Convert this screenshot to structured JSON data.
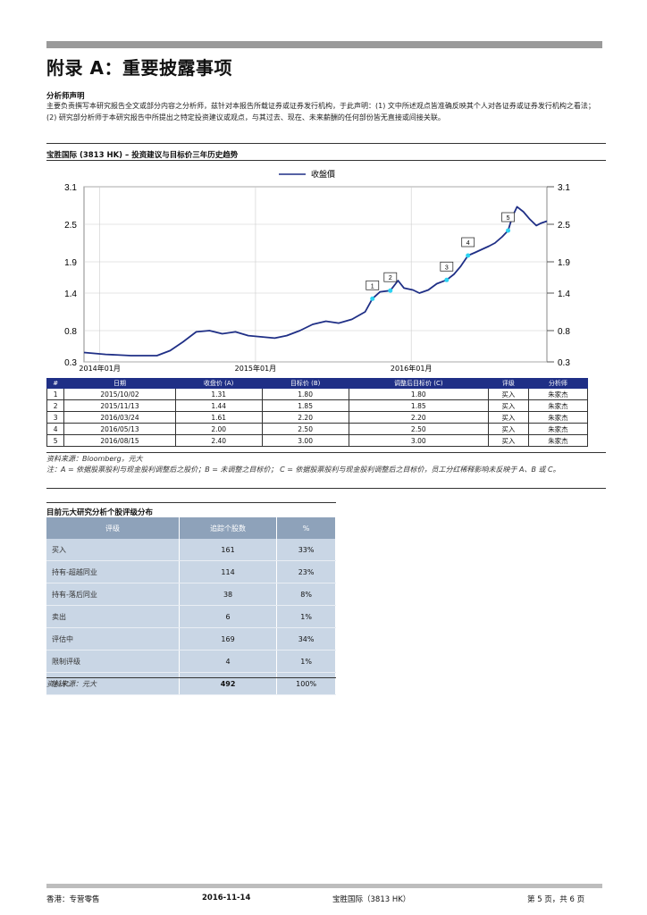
{
  "heading": "附录 A：重要披露事项",
  "analyst": {
    "title": "分析师声明",
    "text": "主要负责撰写本研究报告全文或部分内容之分析师，兹针对本报告所载证券或证券发行机构，于此声明：(1) 文中所述观点皆准确反映其个人对各证券或证券发行机构之看法；(2) 研究部分析师于本研究报告中所提出之特定投资建议或观点，与其过去、现在、未来薪酬的任何部份皆无直接或间接关联。"
  },
  "chart_section": {
    "title": "宝胜国际 (3813 HK) – 投资建议与目标价三年历史趋势",
    "legend": "收盤價",
    "source": "资料来源：Bloomberg，元大",
    "note": "注：A = 依据股票股利与现金股利调整后之股价；B = 未调整之目标价； C = 依据股票股利与现金股利调整后之目标价，员工分红稀释影响未反映于 A、B 或 C。"
  },
  "chart_data": {
    "type": "line",
    "series": [
      {
        "name": "收盤價",
        "x": [
          "2013-11-25",
          "2014-01-15",
          "2014-03-15",
          "2014-05-15",
          "2014-06-15",
          "2014-07-15",
          "2014-08-15",
          "2014-09-15",
          "2014-10-15",
          "2014-11-15",
          "2014-12-15",
          "2015-01-15",
          "2015-02-15",
          "2015-03-15",
          "2015-04-15",
          "2015-05-15",
          "2015-06-15",
          "2015-07-15",
          "2015-08-15",
          "2015-09-15",
          "2015-10-02",
          "2015-10-20",
          "2015-11-13",
          "2015-12-01",
          "2015-12-15",
          "2016-01-05",
          "2016-01-20",
          "2016-02-10",
          "2016-03-01",
          "2016-03-24",
          "2016-04-10",
          "2016-04-25",
          "2016-05-13",
          "2016-05-30",
          "2016-06-15",
          "2016-07-01",
          "2016-07-15",
          "2016-08-01",
          "2016-08-15",
          "2016-08-25",
          "2016-09-05",
          "2016-09-20",
          "2016-10-05",
          "2016-10-20",
          "2016-11-01",
          "2016-11-14"
        ],
        "values": [
          0.45,
          0.42,
          0.4,
          0.4,
          0.48,
          0.62,
          0.78,
          0.8,
          0.75,
          0.78,
          0.72,
          0.7,
          0.68,
          0.72,
          0.8,
          0.9,
          0.95,
          0.92,
          0.98,
          1.1,
          1.31,
          1.42,
          1.44,
          1.6,
          1.48,
          1.45,
          1.4,
          1.45,
          1.55,
          1.61,
          1.7,
          1.82,
          2.0,
          2.05,
          2.1,
          2.15,
          2.2,
          2.3,
          2.4,
          2.62,
          2.78,
          2.7,
          2.58,
          2.48,
          2.52,
          2.55
        ]
      }
    ],
    "markers": [
      {
        "label": "1",
        "date": "2015-10-02",
        "value": 1.31
      },
      {
        "label": "2",
        "date": "2015-11-13",
        "value": 1.44
      },
      {
        "label": "3",
        "date": "2016-03-24",
        "value": 1.61
      },
      {
        "label": "4",
        "date": "2016-05-13",
        "value": 2.0
      },
      {
        "label": "5",
        "date": "2016-08-15",
        "value": 2.4
      }
    ],
    "ylim": [
      0.3,
      3.1
    ],
    "yticks": [
      3.1,
      2.5,
      1.9,
      1.4,
      0.8,
      0.3
    ],
    "xticks": [
      "2014年01月",
      "2015年01月",
      "2016年01月"
    ],
    "xtick_dates": [
      "2014-01-01",
      "2015-01-01",
      "2016-01-01"
    ],
    "xlim": [
      "2013-11-25",
      "2016-11-14"
    ],
    "grid": true,
    "colors": {
      "line": "#1f2f86",
      "marker": "#2ad2f2"
    }
  },
  "history_table": {
    "headers": [
      "#",
      "日期",
      "收盘价 (A)",
      "目标价 (B)",
      "调整后目标价 (C)",
      "评级",
      "分析师"
    ],
    "rows": [
      [
        "1",
        "2015/10/02",
        "1.31",
        "1.80",
        "1.80",
        "买入",
        "朱家杰"
      ],
      [
        "2",
        "2015/11/13",
        "1.44",
        "1.85",
        "1.85",
        "买入",
        "朱家杰"
      ],
      [
        "3",
        "2016/03/24",
        "1.61",
        "2.20",
        "2.20",
        "买入",
        "朱家杰"
      ],
      [
        "4",
        "2016/05/13",
        "2.00",
        "2.50",
        "2.50",
        "买入",
        "朱家杰"
      ],
      [
        "5",
        "2016/08/15",
        "2.40",
        "3.00",
        "3.00",
        "买入",
        "朱家杰"
      ]
    ]
  },
  "distribution": {
    "title": "目前元大研究分析个股评级分布",
    "headers": [
      "评级",
      "追踪个股数",
      "%"
    ],
    "rows": [
      [
        "买入",
        "161",
        "33%"
      ],
      [
        "持有-超越同业",
        "114",
        "23%"
      ],
      [
        "持有-落后同业",
        "38",
        "8%"
      ],
      [
        "卖出",
        "6",
        "1%"
      ],
      [
        "评估中",
        "169",
        "34%"
      ],
      [
        "限制评级",
        "4",
        "1%"
      ]
    ],
    "total": [
      "总计：",
      "492",
      "100%"
    ],
    "source": "资料来源：元大"
  },
  "footer": {
    "left": "香港：专营零售",
    "date": "2016-11-14",
    "company": "宝胜国际（3813 HK）",
    "page": "第 5 页，共 6 页"
  },
  "colors": {
    "accent": "#1f2f86",
    "table_head": "#8ea2ba",
    "table_cell": "#c9d6e5"
  }
}
